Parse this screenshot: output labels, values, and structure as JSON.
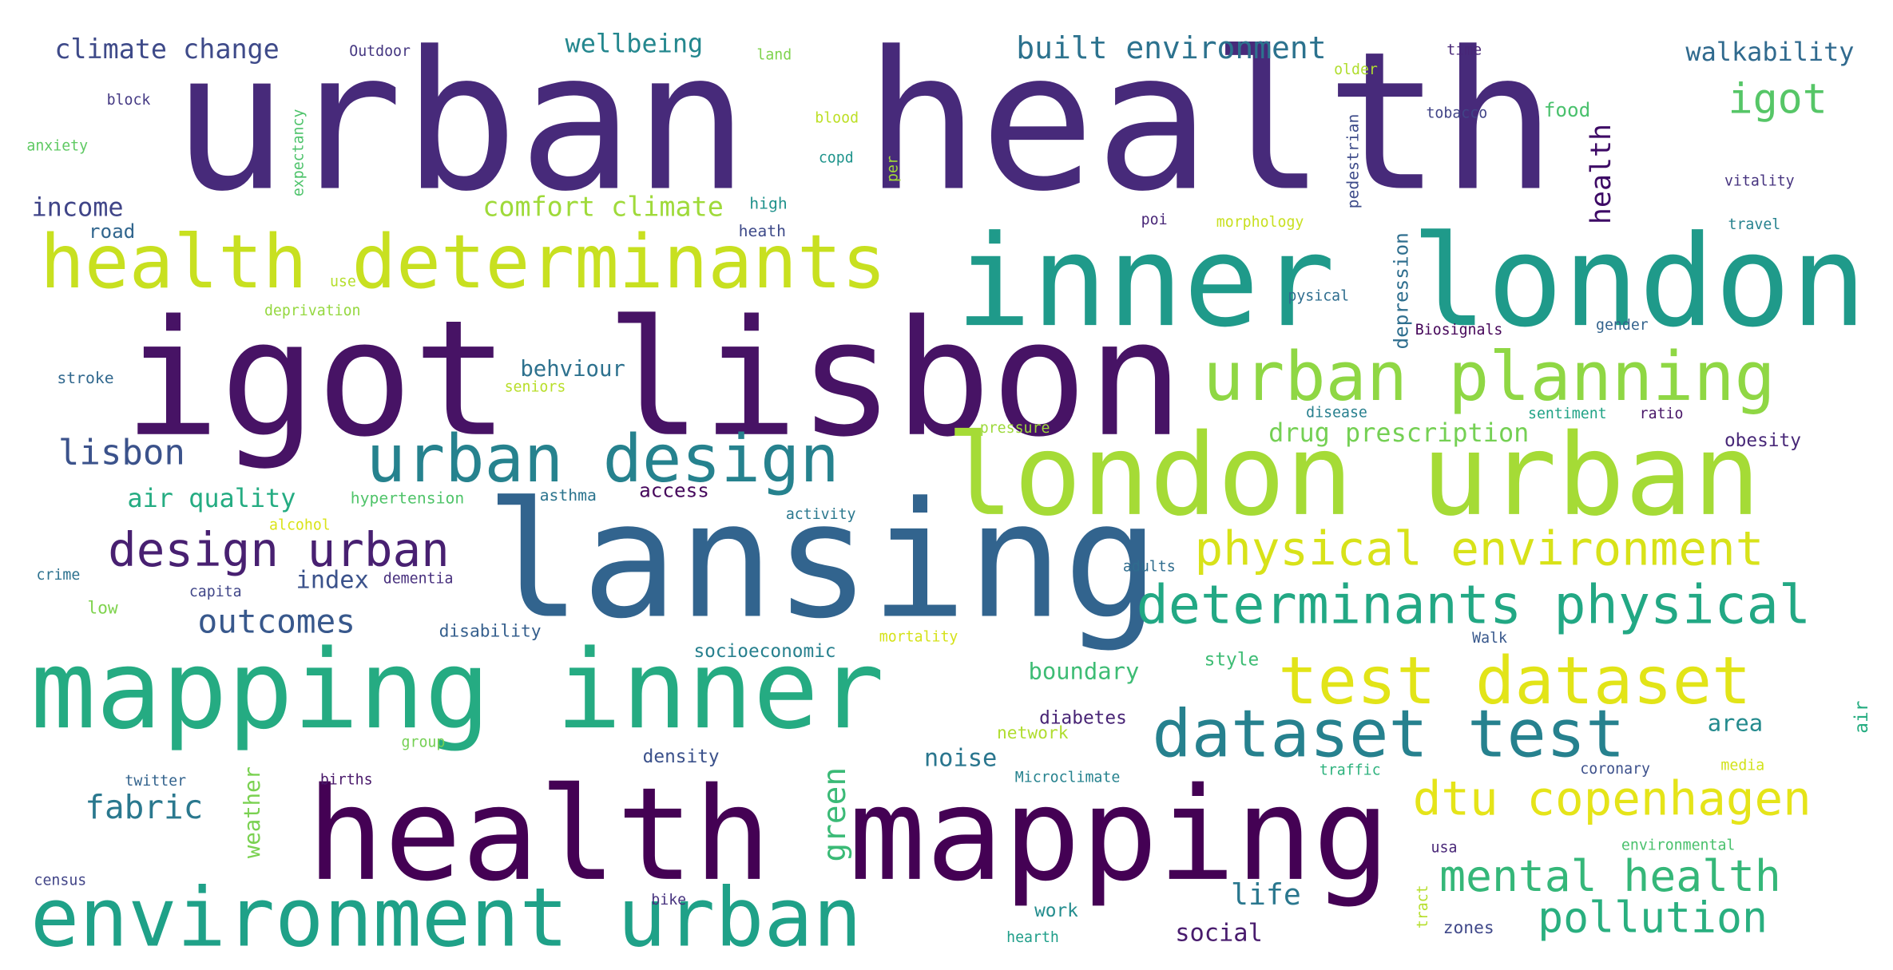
{
  "word_cloud": {
    "words": [
      {
        "text": "urban health",
        "color": "#472a7a"
      },
      {
        "text": "igot lisbon",
        "color": "#471365"
      },
      {
        "text": "lansing",
        "color": "#32648e"
      },
      {
        "text": "inner london",
        "color": "#1f9a8a"
      },
      {
        "text": "health mapping",
        "color": "#440154"
      },
      {
        "text": "mapping inner",
        "color": "#25ab82"
      },
      {
        "text": "london urban",
        "color": "#a5db36"
      },
      {
        "text": "health determinants",
        "color": "#c8e020"
      },
      {
        "text": "environment urban",
        "color": "#1fa188"
      },
      {
        "text": "urban planning",
        "color": "#8fd744"
      },
      {
        "text": "urban design",
        "color": "#26828e"
      },
      {
        "text": "test dataset",
        "color": "#e2e418"
      },
      {
        "text": "dataset test",
        "color": "#26818e"
      },
      {
        "text": "determinants physical",
        "color": "#22a884"
      },
      {
        "text": "physical environment",
        "color": "#d8e219"
      },
      {
        "text": "dtu copenhagen",
        "color": "#e5e419"
      },
      {
        "text": "design urban",
        "color": "#482071"
      },
      {
        "text": "mental health",
        "color": "#35b779"
      },
      {
        "text": "pollution",
        "color": "#29af7f"
      },
      {
        "text": "lisbon",
        "color": "#3b528b"
      },
      {
        "text": "outcomes",
        "color": "#38588c"
      },
      {
        "text": "built environment",
        "color": "#2c728e"
      },
      {
        "text": "climate change",
        "color": "#3e4a89"
      },
      {
        "text": "igot",
        "color": "#56c667"
      },
      {
        "text": "walkability",
        "color": "#306a8e"
      },
      {
        "text": "fabric",
        "color": "#2a788e"
      },
      {
        "text": "green",
        "color": "#3aba76"
      },
      {
        "text": "comfort climate",
        "color": "#9fda3a"
      },
      {
        "text": "drug prescription",
        "color": "#75d054"
      },
      {
        "text": "air quality",
        "color": "#25ac82"
      },
      {
        "text": "income",
        "color": "#404588"
      },
      {
        "text": "wellbeing",
        "color": "#24878e"
      },
      {
        "text": "health",
        "color": "#3d0965"
      },
      {
        "text": "index",
        "color": "#3b528b"
      },
      {
        "text": "behviour",
        "color": "#2d718e"
      },
      {
        "text": "life",
        "color": "#2a778e"
      },
      {
        "text": "boundary",
        "color": "#3dbc74"
      },
      {
        "text": "noise",
        "color": "#2a768e"
      },
      {
        "text": "social",
        "color": "#481b6d"
      },
      {
        "text": "weather",
        "color": "#7ad151"
      },
      {
        "text": "area",
        "color": "#238a8d"
      },
      {
        "text": "road",
        "color": "#31668e"
      },
      {
        "text": "access",
        "color": "#46085c"
      },
      {
        "text": "depression",
        "color": "#2e6e8e"
      },
      {
        "text": "food",
        "color": "#4ac16d"
      },
      {
        "text": "density",
        "color": "#3b518b"
      },
      {
        "text": "diabetes",
        "color": "#482475"
      },
      {
        "text": "obesity",
        "color": "#482878"
      },
      {
        "text": "work",
        "color": "#228c8d"
      },
      {
        "text": "style",
        "color": "#3dbc74"
      },
      {
        "text": "air",
        "color": "#26ad81"
      },
      {
        "text": "socioeconomic",
        "color": "#27808e"
      },
      {
        "text": "stroke",
        "color": "#31688e"
      },
      {
        "text": "disability",
        "color": "#355f8d"
      },
      {
        "text": "hypertension",
        "color": "#50c46a"
      },
      {
        "text": "asthma",
        "color": "#2b748e"
      },
      {
        "text": "pedestrian",
        "color": "#3e4c8a"
      },
      {
        "text": "Outdoor",
        "color": "#453781"
      },
      {
        "text": "block",
        "color": "#443983"
      },
      {
        "text": "anxiety",
        "color": "#5ec962"
      },
      {
        "text": "expectancy",
        "color": "#4ec36b"
      },
      {
        "text": "land",
        "color": "#7fd34e"
      },
      {
        "text": "blood",
        "color": "#bddf26"
      },
      {
        "text": "copd",
        "color": "#1f948c"
      },
      {
        "text": "per",
        "color": "#a2da37"
      },
      {
        "text": "high",
        "color": "#20928c"
      },
      {
        "text": "heath",
        "color": "#3e4a89"
      },
      {
        "text": "use",
        "color": "#b5de2b"
      },
      {
        "text": "deprivation",
        "color": "#95d840"
      },
      {
        "text": "seniors",
        "color": "#b8de29"
      },
      {
        "text": "pressure",
        "color": "#9dd93b"
      },
      {
        "text": "activity",
        "color": "#2a788e"
      },
      {
        "text": "alcohol",
        "color": "#dae319"
      },
      {
        "text": "crime",
        "color": "#2c718e"
      },
      {
        "text": "low",
        "color": "#7fd34e"
      },
      {
        "text": "capita",
        "color": "#404688"
      },
      {
        "text": "dementia",
        "color": "#472f7d"
      },
      {
        "text": "adults",
        "color": "#2f6c8e"
      },
      {
        "text": "mortality",
        "color": "#d5e21a"
      },
      {
        "text": "Walk",
        "color": "#38588c"
      },
      {
        "text": "network",
        "color": "#b0dd2f"
      },
      {
        "text": "group",
        "color": "#75d054"
      },
      {
        "text": "twitter",
        "color": "#33638d"
      },
      {
        "text": "births",
        "color": "#481769"
      },
      {
        "text": "Microclimate",
        "color": "#26828e"
      },
      {
        "text": "traffic",
        "color": "#2db27d"
      },
      {
        "text": "coronary",
        "color": "#3c508b"
      },
      {
        "text": "media",
        "color": "#d2e21b"
      },
      {
        "text": "environmental",
        "color": "#4ac16d"
      },
      {
        "text": "census",
        "color": "#414487"
      },
      {
        "text": "bike",
        "color": "#46327e"
      },
      {
        "text": "tract",
        "color": "#b5de2b"
      },
      {
        "text": "usa",
        "color": "#482677"
      },
      {
        "text": "zones",
        "color": "#3f4889"
      },
      {
        "text": "hearth",
        "color": "#1f9e89"
      },
      {
        "text": "older",
        "color": "#b0dd2f"
      },
      {
        "text": "time",
        "color": "#482677"
      },
      {
        "text": "tobacco",
        "color": "#414487"
      },
      {
        "text": "vitality",
        "color": "#46337f"
      },
      {
        "text": "poi",
        "color": "#482677"
      },
      {
        "text": "morphology",
        "color": "#c8e020"
      },
      {
        "text": "travel",
        "color": "#26828e"
      },
      {
        "text": "pysical",
        "color": "#2e6d8e"
      },
      {
        "text": "Biosignals",
        "color": "#450559"
      },
      {
        "text": "gender",
        "color": "#33638d"
      },
      {
        "text": "disease",
        "color": "#277f8e"
      },
      {
        "text": "sentiment",
        "color": "#20a386"
      },
      {
        "text": "ratio",
        "color": "#481668"
      }
    ]
  }
}
